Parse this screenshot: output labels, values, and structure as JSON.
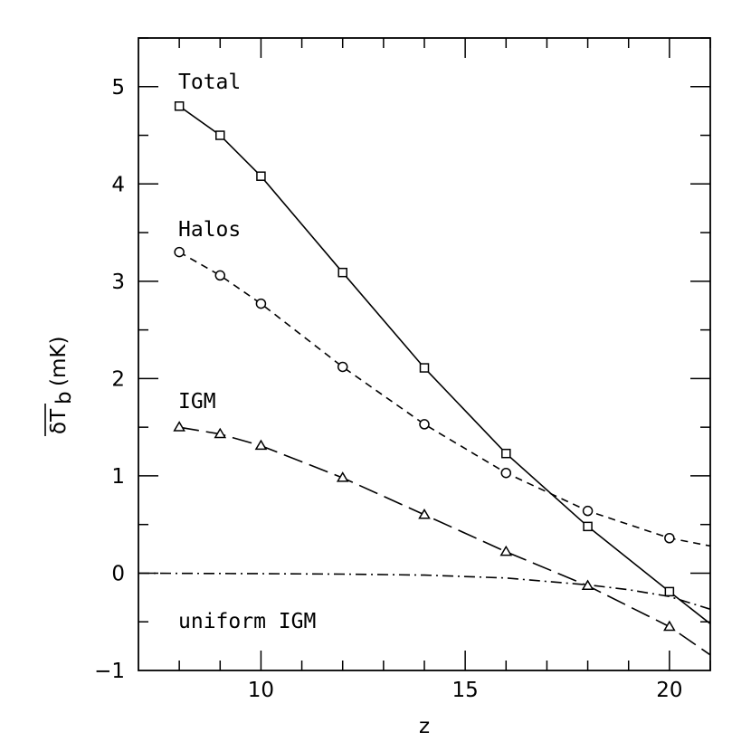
{
  "chart_data": {
    "type": "line",
    "xlabel": "z",
    "ylabel_main": "δT",
    "ylabel_sub": "b",
    "ylabel_unit": "(mK)",
    "xlim": [
      7,
      21
    ],
    "ylim": [
      -1,
      5.5
    ],
    "x_ticks": [
      10,
      15,
      20
    ],
    "y_ticks": [
      -1,
      0,
      1,
      2,
      3,
      4,
      5
    ],
    "x_tick_labels": [
      "10",
      "15",
      "20"
    ],
    "y_tick_labels": [
      "−1",
      "0",
      "1",
      "2",
      "3",
      "4",
      "5"
    ],
    "grid": false,
    "series": [
      {
        "name": "Total",
        "line_style": "solid",
        "marker": "square",
        "x": [
          8,
          9,
          10,
          12,
          14,
          16,
          18,
          20
        ],
        "y": [
          4.8,
          4.5,
          4.08,
          3.09,
          2.11,
          1.23,
          0.48,
          -0.19
        ],
        "curve": [
          [
            20,
            -0.19
          ],
          [
            21,
            -0.52
          ]
        ]
      },
      {
        "name": "Halos",
        "line_style": "short-dash",
        "marker": "circle",
        "x": [
          8,
          9,
          10,
          12,
          14,
          16,
          18,
          20
        ],
        "y": [
          3.3,
          3.06,
          2.77,
          2.12,
          1.53,
          1.03,
          0.64,
          0.36
        ],
        "curve": [
          [
            20,
            0.36
          ],
          [
            21,
            0.28
          ]
        ]
      },
      {
        "name": "IGM",
        "line_style": "long-dash",
        "marker": "triangle",
        "x": [
          8,
          9,
          10,
          12,
          14,
          16,
          18,
          20
        ],
        "y": [
          1.5,
          1.43,
          1.31,
          0.98,
          0.6,
          0.22,
          -0.13,
          -0.55
        ],
        "curve": [
          [
            20,
            -0.55
          ],
          [
            21,
            -0.84
          ]
        ]
      },
      {
        "name": "uniform IGM",
        "line_style": "dash-dot",
        "marker": "none",
        "x": [],
        "y": [],
        "curve": [
          [
            7,
            0
          ],
          [
            10,
            -0.005
          ],
          [
            12,
            -0.01
          ],
          [
            14,
            -0.02
          ],
          [
            16,
            -0.05
          ],
          [
            18,
            -0.12
          ],
          [
            19,
            -0.17
          ],
          [
            20,
            -0.24
          ],
          [
            21,
            -0.37
          ]
        ]
      }
    ]
  }
}
